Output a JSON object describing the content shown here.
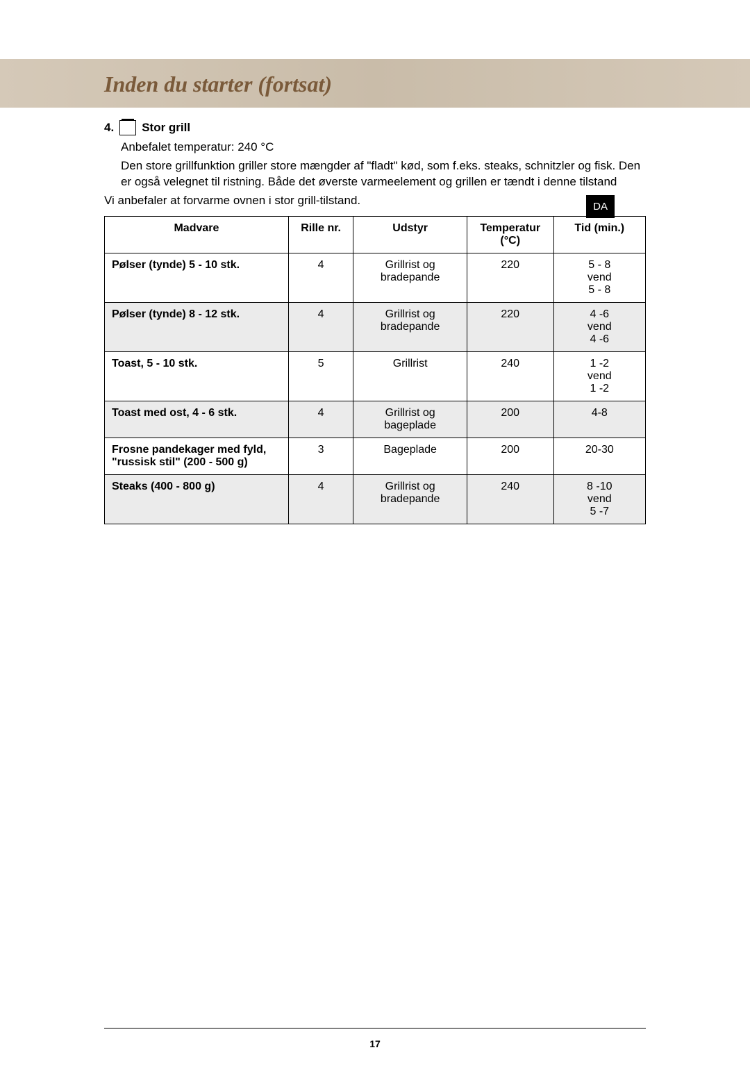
{
  "header": {
    "title": "Inden du starter (fortsat)",
    "title_color": "#7a5a3a",
    "band_gradient": [
      "#d5c9b8",
      "#c9bca9",
      "#d5c9b8"
    ]
  },
  "side_tab": "DA",
  "section": {
    "number": "4.",
    "label": "Stor grill",
    "rec_temp": "Anbefalet temperatur: 240 °C",
    "description": "Den store grillfunktion griller store mængder af \"fladt\" kød, som f.eks. steaks, schnitzler og fisk. Den er også velegnet til ristning. Både det øverste varmeelement og grillen er tændt i denne tilstand",
    "preheat_note": "Vi anbefaler at forvarme ovnen i stor grill-tilstand."
  },
  "table": {
    "columns": [
      "Madvare",
      "Rille nr.",
      "Udstyr",
      "Temperatur (°C)",
      "Tid (min.)"
    ],
    "rows": [
      {
        "shade": false,
        "food": "Pølser (tynde) 5 - 10 stk.",
        "rille": "4",
        "udstyr": "Grillrist og bradepande",
        "temp": "220",
        "time": "5 - 8\nvend\n5 - 8"
      },
      {
        "shade": true,
        "food": "Pølser (tynde) 8 - 12 stk.",
        "rille": "4",
        "udstyr": "Grillrist og bradepande",
        "temp": "220",
        "time": "4 -6\nvend\n4 -6"
      },
      {
        "shade": false,
        "food": "Toast, 5 - 10 stk.",
        "rille": "5",
        "udstyr": "Grillrist",
        "temp": "240",
        "time": "1 -2\nvend\n1 -2"
      },
      {
        "shade": true,
        "food": "Toast med ost, 4 - 6 stk.",
        "rille": "4",
        "udstyr": "Grillrist og bageplade",
        "temp": "200",
        "time": "4-8"
      },
      {
        "shade": false,
        "food": "Frosne pandekager med fyld, \"russisk stil\" (200 - 500 g)",
        "rille": "3",
        "udstyr": "Bageplade",
        "temp": "200",
        "time": "20-30"
      },
      {
        "shade": true,
        "food": "Steaks (400 - 800 g)",
        "rille": "4",
        "udstyr": "Grillrist og bradepande",
        "temp": "240",
        "time": "8 -10\nvend\n5 -7"
      }
    ]
  },
  "page_number": "17"
}
